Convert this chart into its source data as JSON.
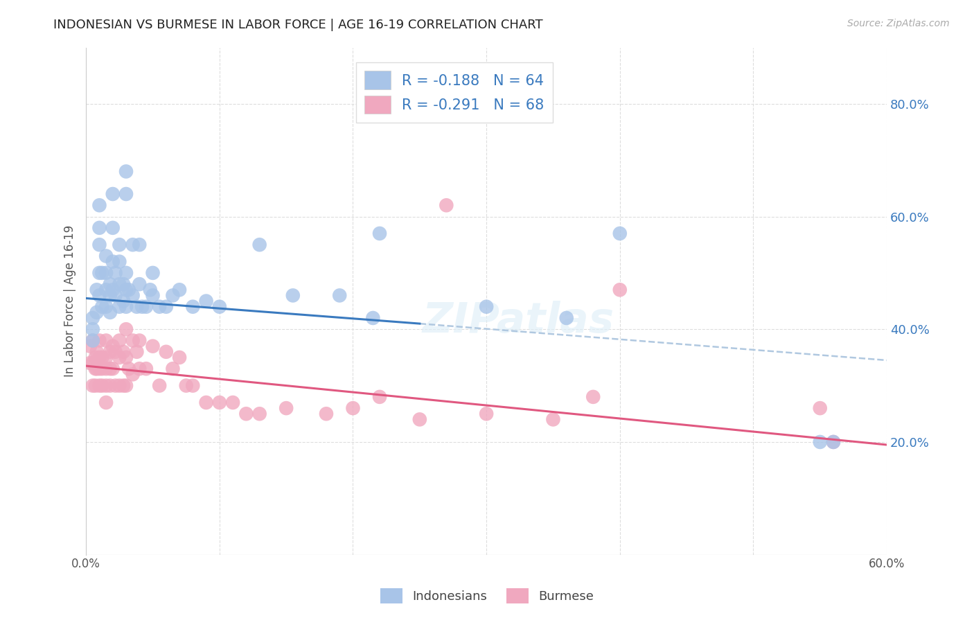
{
  "title": "INDONESIAN VS BURMESE IN LABOR FORCE | AGE 16-19 CORRELATION CHART",
  "source": "Source: ZipAtlas.com",
  "ylabel": "In Labor Force | Age 16-19",
  "xlim": [
    0.0,
    0.6
  ],
  "ylim": [
    0.0,
    0.9
  ],
  "xticks": [
    0.0,
    0.1,
    0.2,
    0.3,
    0.4,
    0.5,
    0.6
  ],
  "xtick_labels": [
    "0.0%",
    "",
    "",
    "",
    "",
    "",
    "60.0%"
  ],
  "ytick_labels_right": [
    "20.0%",
    "40.0%",
    "60.0%",
    "80.0%"
  ],
  "ytick_positions_right": [
    0.2,
    0.4,
    0.6,
    0.8
  ],
  "indonesian_R": "-0.188",
  "indonesian_N": "64",
  "burmese_R": "-0.291",
  "burmese_N": "68",
  "indonesian_color": "#a8c4e8",
  "burmese_color": "#f0a8bf",
  "indonesian_line_color": "#3a7abf",
  "burmese_line_color": "#e05880",
  "dashed_line_color": "#b0c8e0",
  "background_color": "#ffffff",
  "grid_color": "#dddddd",
  "watermark": "ZIPatlas",
  "indo_line_x0": 0.0,
  "indo_line_y0": 0.455,
  "indo_line_x1": 0.25,
  "indo_line_y1": 0.41,
  "dash_line_x0": 0.25,
  "dash_line_y0": 0.41,
  "dash_line_x1": 0.6,
  "dash_line_y1": 0.345,
  "burm_line_x0": 0.0,
  "burm_line_y0": 0.335,
  "burm_line_x1": 0.6,
  "burm_line_y1": 0.195,
  "indonesian_x": [
    0.005,
    0.005,
    0.005,
    0.008,
    0.008,
    0.01,
    0.01,
    0.01,
    0.01,
    0.01,
    0.012,
    0.012,
    0.015,
    0.015,
    0.015,
    0.015,
    0.018,
    0.018,
    0.018,
    0.02,
    0.02,
    0.02,
    0.02,
    0.022,
    0.022,
    0.025,
    0.025,
    0.025,
    0.025,
    0.028,
    0.028,
    0.03,
    0.03,
    0.03,
    0.03,
    0.03,
    0.032,
    0.035,
    0.035,
    0.038,
    0.04,
    0.04,
    0.042,
    0.045,
    0.048,
    0.05,
    0.05,
    0.055,
    0.06,
    0.065,
    0.07,
    0.08,
    0.09,
    0.1,
    0.13,
    0.155,
    0.19,
    0.215,
    0.22,
    0.3,
    0.36,
    0.4,
    0.55,
    0.56
  ],
  "indonesian_y": [
    0.42,
    0.4,
    0.38,
    0.47,
    0.43,
    0.62,
    0.58,
    0.55,
    0.5,
    0.46,
    0.5,
    0.44,
    0.53,
    0.5,
    0.47,
    0.44,
    0.48,
    0.46,
    0.43,
    0.64,
    0.58,
    0.52,
    0.47,
    0.5,
    0.46,
    0.55,
    0.52,
    0.48,
    0.44,
    0.48,
    0.45,
    0.68,
    0.64,
    0.5,
    0.47,
    0.44,
    0.47,
    0.55,
    0.46,
    0.44,
    0.55,
    0.48,
    0.44,
    0.44,
    0.47,
    0.5,
    0.46,
    0.44,
    0.44,
    0.46,
    0.47,
    0.44,
    0.45,
    0.44,
    0.55,
    0.46,
    0.46,
    0.42,
    0.57,
    0.44,
    0.42,
    0.57,
    0.2,
    0.2
  ],
  "burmese_x": [
    0.003,
    0.003,
    0.005,
    0.005,
    0.005,
    0.007,
    0.007,
    0.007,
    0.008,
    0.008,
    0.01,
    0.01,
    0.01,
    0.01,
    0.012,
    0.012,
    0.012,
    0.015,
    0.015,
    0.015,
    0.015,
    0.015,
    0.018,
    0.018,
    0.018,
    0.02,
    0.02,
    0.022,
    0.022,
    0.025,
    0.025,
    0.025,
    0.028,
    0.028,
    0.03,
    0.03,
    0.03,
    0.032,
    0.035,
    0.035,
    0.038,
    0.04,
    0.04,
    0.045,
    0.05,
    0.055,
    0.06,
    0.065,
    0.07,
    0.075,
    0.08,
    0.09,
    0.1,
    0.11,
    0.12,
    0.13,
    0.15,
    0.18,
    0.2,
    0.22,
    0.25,
    0.27,
    0.3,
    0.35,
    0.38,
    0.4,
    0.55,
    0.56
  ],
  "burmese_y": [
    0.37,
    0.34,
    0.38,
    0.34,
    0.3,
    0.35,
    0.33,
    0.3,
    0.36,
    0.33,
    0.38,
    0.35,
    0.33,
    0.3,
    0.35,
    0.33,
    0.3,
    0.38,
    0.35,
    0.33,
    0.3,
    0.27,
    0.36,
    0.33,
    0.3,
    0.37,
    0.33,
    0.36,
    0.3,
    0.38,
    0.35,
    0.3,
    0.36,
    0.3,
    0.4,
    0.35,
    0.3,
    0.33,
    0.38,
    0.32,
    0.36,
    0.38,
    0.33,
    0.33,
    0.37,
    0.3,
    0.36,
    0.33,
    0.35,
    0.3,
    0.3,
    0.27,
    0.27,
    0.27,
    0.25,
    0.25,
    0.26,
    0.25,
    0.26,
    0.28,
    0.24,
    0.62,
    0.25,
    0.24,
    0.28,
    0.47,
    0.26,
    0.2
  ]
}
